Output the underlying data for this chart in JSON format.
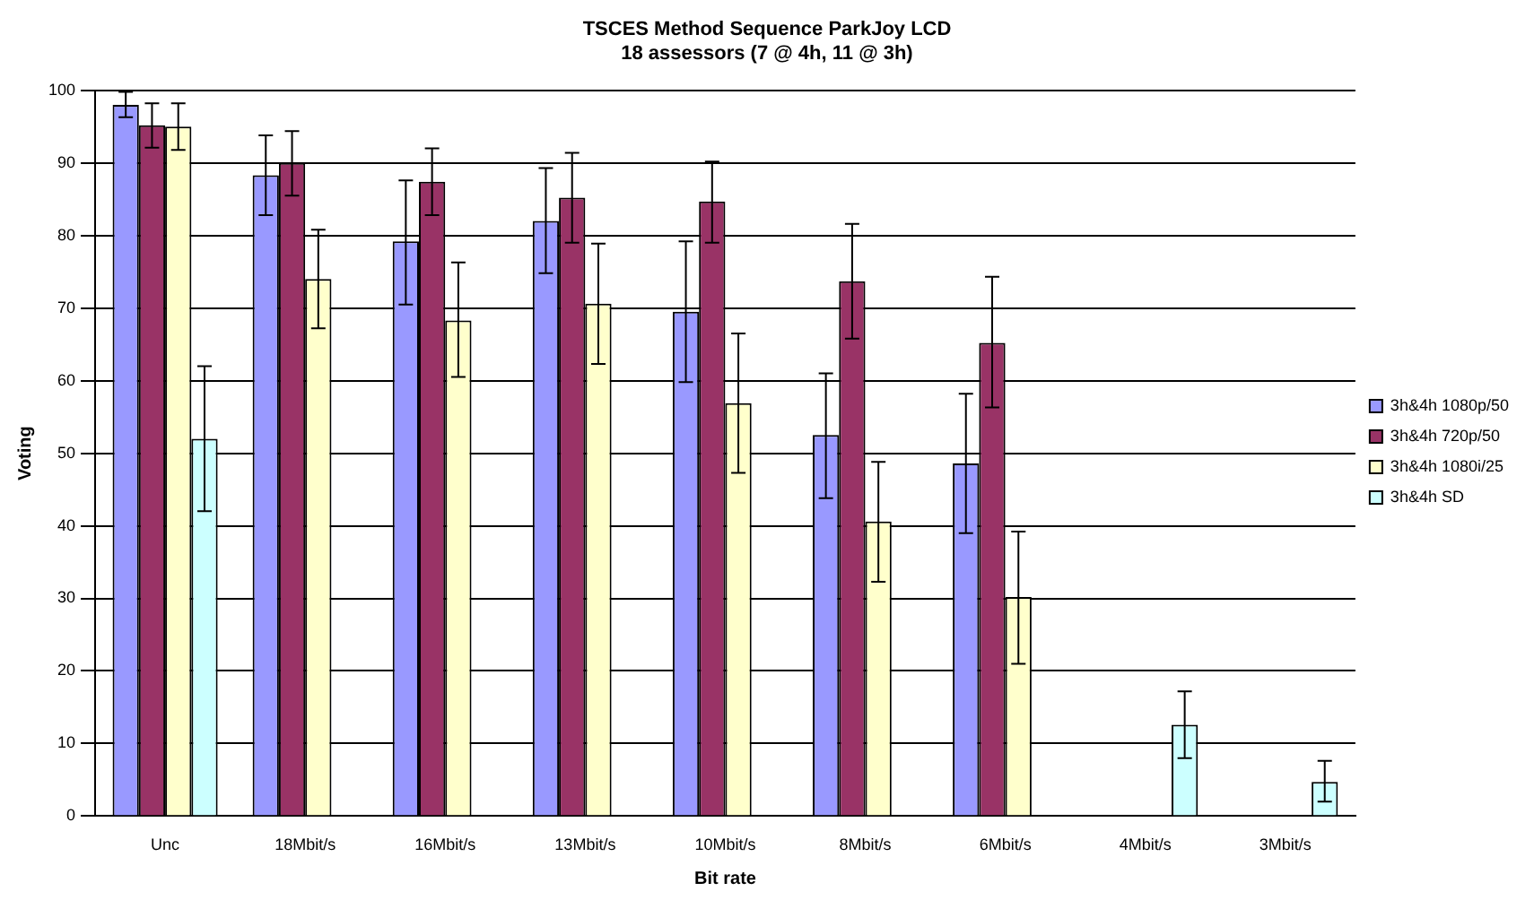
{
  "chart_data": {
    "type": "bar",
    "title": "TSCES Method Sequence ParkJoy LCD",
    "subtitle": "18 assessors (7 @ 4h, 11 @ 3h)",
    "xlabel": "Bit rate",
    "ylabel": "Voting",
    "categories": [
      "Unc",
      "18Mbit/s",
      "16Mbit/s",
      "13Mbit/s",
      "10Mbit/s",
      "8Mbit/s",
      "6Mbit/s",
      "4Mbit/s",
      "3Mbit/s"
    ],
    "series": [
      {
        "name": "3h&4h 1080p/50",
        "color": "#9999ff",
        "values": [
          98,
          88.3,
          79.2,
          82,
          69.5,
          52.5,
          48.6,
          null,
          null
        ],
        "errors": [
          [
            96.3,
            99.8
          ],
          [
            82.8,
            93.8
          ],
          [
            70.5,
            87.6
          ],
          [
            74.8,
            89.3
          ],
          [
            59.8,
            79.2
          ],
          [
            43.8,
            61
          ],
          [
            39,
            58.2
          ],
          null,
          null
        ]
      },
      {
        "name": "3h&4h 720p/50",
        "color": "#993366",
        "values": [
          95.2,
          90,
          87.4,
          85.2,
          84.7,
          73.7,
          65.2,
          null,
          null
        ],
        "errors": [
          [
            92.1,
            98.2
          ],
          [
            85.5,
            94.4
          ],
          [
            82.8,
            92
          ],
          [
            79,
            91.4
          ],
          [
            79,
            90.2
          ],
          [
            65.8,
            81.6
          ],
          [
            56.3,
            74.3
          ],
          null,
          null
        ]
      },
      {
        "name": "3h&4h 1080i/25",
        "color": "#ffffcc",
        "values": [
          95,
          74,
          68.3,
          70.6,
          56.9,
          40.6,
          30.2,
          null,
          null
        ],
        "errors": [
          [
            91.8,
            98.2
          ],
          [
            67.2,
            80.8
          ],
          [
            60.5,
            76.3
          ],
          [
            62.3,
            78.9
          ],
          [
            47.3,
            66.5
          ],
          [
            32.3,
            48.8
          ],
          [
            21,
            39.2
          ],
          null,
          null
        ]
      },
      {
        "name": "3h&4h SD",
        "color": "#ccffff",
        "values": [
          52,
          null,
          null,
          null,
          null,
          null,
          null,
          12.6,
          4.7
        ],
        "errors": [
          [
            42,
            62
          ],
          null,
          null,
          null,
          null,
          null,
          null,
          [
            8,
            17.2
          ],
          [
            2,
            7.6
          ]
        ]
      }
    ],
    "ylim": [
      0,
      100
    ],
    "yticks": [
      0,
      10,
      20,
      30,
      40,
      50,
      60,
      70,
      80,
      90,
      100
    ],
    "grid": "y",
    "legend": "right"
  }
}
